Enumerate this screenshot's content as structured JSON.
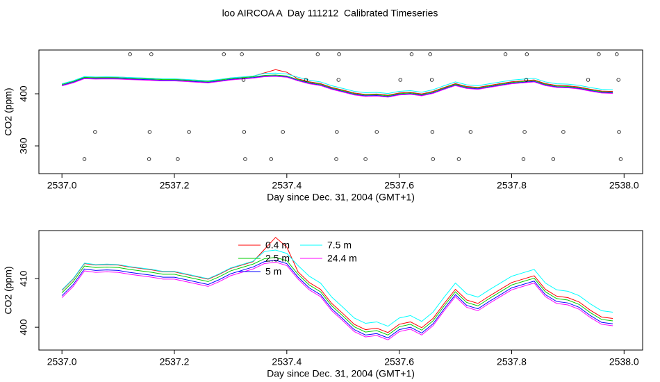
{
  "title": "loo AIRCOA A  Day 111212  Calibrated Timeseries",
  "chart_data": [
    {
      "type": "line",
      "xlabel": "Day since Dec. 31, 2004 (GMT+1)",
      "ylabel": "CO2 (ppm)",
      "xlim": [
        2536.959,
        2538.033
      ],
      "xticks": [
        {
          "value": 2537,
          "label": "2537.0"
        },
        2537.2,
        2537.4,
        2537.6,
        2537.8,
        {
          "value": 2538,
          "label": "2538.0"
        }
      ],
      "ylim": [
        338.7,
        433.6
      ],
      "yticks": [
        360,
        400
      ],
      "x": [
        2537,
        2537.02,
        2537.04,
        2537.06,
        2537.08,
        2537.1,
        2537.12,
        2537.14,
        2537.16,
        2537.18,
        2537.2,
        2537.22,
        2537.24,
        2537.26,
        2537.28,
        2537.3,
        2537.32,
        2537.34,
        2537.36,
        2537.38,
        2537.4,
        2537.42,
        2537.44,
        2537.46,
        2537.48,
        2537.5,
        2537.52,
        2537.54,
        2537.56,
        2537.58,
        2537.6,
        2537.62,
        2537.64,
        2537.66,
        2537.68,
        2537.7,
        2537.72,
        2537.74,
        2537.76,
        2537.78,
        2537.8,
        2537.82,
        2537.84,
        2537.86,
        2537.88,
        2537.9,
        2537.92,
        2537.94,
        2537.96,
        2537.98
      ],
      "series": [
        {
          "color": "#ff0000",
          "values": [
            407.6,
            409.9,
            413.1,
            412.8,
            412.9,
            412.8,
            412.4,
            412.1,
            411.8,
            411.4,
            411.4,
            410.9,
            410.4,
            409.9,
            410.9,
            412.1,
            412.8,
            413.5,
            416.0,
            418.5,
            416.5,
            411.4,
            409.2,
            407.8,
            404.9,
            402.8,
            400.6,
            399.5,
            399.8,
            398.9,
            400.6,
            401.1,
            399.9,
            401.8,
            404.9,
            407.8,
            405.6,
            404.9,
            406.4,
            407.8,
            409.2,
            409.9,
            410.6,
            407.8,
            406.4,
            406.1,
            405.2,
            403.5,
            402.1,
            401.8
          ]
        },
        {
          "color": "#00cd00",
          "values": [
            407.1,
            409.4,
            412.6,
            412.3,
            412.4,
            412.3,
            411.9,
            411.6,
            411.3,
            410.9,
            410.9,
            410.4,
            409.9,
            409.4,
            410.4,
            411.6,
            412.3,
            413.0,
            414.1,
            414.4,
            413.7,
            410.9,
            408.7,
            407.3,
            404.4,
            402.3,
            400.1,
            399.0,
            399.3,
            398.4,
            400.1,
            400.6,
            399.4,
            401.3,
            404.4,
            407.3,
            405.1,
            404.4,
            405.9,
            407.3,
            408.7,
            409.4,
            410.1,
            407.3,
            405.9,
            405.6,
            404.7,
            403.0,
            401.6,
            401.3
          ]
        },
        {
          "color": "#0000ff",
          "values": [
            406.5,
            408.8,
            412.0,
            411.7,
            411.8,
            411.7,
            411.3,
            411.0,
            410.7,
            410.3,
            410.3,
            409.8,
            409.3,
            408.8,
            409.8,
            411.0,
            411.7,
            412.4,
            413.5,
            413.8,
            413.1,
            410.3,
            408.1,
            406.7,
            403.8,
            401.7,
            399.5,
            398.4,
            398.7,
            397.8,
            399.5,
            400.0,
            398.8,
            400.7,
            403.8,
            406.7,
            404.5,
            403.8,
            405.3,
            406.7,
            408.1,
            408.8,
            409.5,
            406.7,
            405.3,
            405.0,
            404.1,
            402.4,
            401.0,
            400.7
          ]
        },
        {
          "color": "#00ffff",
          "values": [
            407.7,
            410.0,
            413.2,
            412.9,
            413.0,
            412.9,
            412.5,
            412.2,
            411.9,
            411.5,
            411.5,
            411.0,
            410.5,
            410.0,
            411.0,
            412.2,
            412.9,
            413.6,
            415.6,
            415.9,
            415.2,
            412.7,
            410.5,
            409.1,
            406.2,
            404.1,
            401.9,
            400.8,
            401.1,
            400.2,
            401.9,
            402.4,
            401.2,
            403.1,
            406.2,
            409.1,
            406.9,
            406.2,
            407.7,
            409.1,
            410.5,
            411.2,
            411.9,
            409.1,
            407.7,
            407.4,
            406.5,
            404.8,
            403.4,
            403.1
          ]
        },
        {
          "color": "#ff00ff",
          "values": [
            406.1,
            408.4,
            411.6,
            411.3,
            411.4,
            411.3,
            410.9,
            410.6,
            410.3,
            409.9,
            409.9,
            409.4,
            408.9,
            408.4,
            409.4,
            410.6,
            411.3,
            412.0,
            413.1,
            413.4,
            412.7,
            409.9,
            407.7,
            406.3,
            403.4,
            401.3,
            399.1,
            398.0,
            398.3,
            397.4,
            399.1,
            399.6,
            398.4,
            400.3,
            403.4,
            406.3,
            404.1,
            403.4,
            404.9,
            406.3,
            407.7,
            408.4,
            409.1,
            406.3,
            404.9,
            404.6,
            403.7,
            402.0,
            400.6,
            400.3
          ]
        }
      ],
      "points": {
        "color": "#000000",
        "x": [
          2537.121,
          2537.159,
          2537.288,
          2537.32,
          2537.455,
          2537.493,
          2537.622,
          2537.655,
          2537.789,
          2537.827,
          2537.955,
          2537.987,
          2537.323,
          2537.434,
          2537.492,
          2537.602,
          2537.658,
          2537.826,
          2537.936,
          2537.99,
          2537.059,
          2537.156,
          2537.226,
          2537.324,
          2537.393,
          2537.489,
          2537.56,
          2537.659,
          2537.727,
          2537.823,
          2537.892,
          2537.991,
          2537.04,
          2537.155,
          2537.206,
          2537.326,
          2537.372,
          2537.488,
          2537.54,
          2537.66,
          2537.706,
          2537.821,
          2537.874,
          2537.994
        ],
        "values": [
          430.4,
          430.4,
          430.4,
          430.4,
          430.4,
          430.4,
          430.4,
          430.4,
          430.4,
          430.4,
          430.4,
          430.4,
          410.7,
          410.7,
          410.7,
          410.7,
          410.7,
          410.7,
          410.7,
          410.7,
          370.7,
          370.7,
          370.7,
          370.7,
          370.7,
          370.7,
          370.7,
          370.7,
          370.7,
          370.7,
          370.7,
          370.7,
          349.9,
          349.9,
          349.9,
          349.9,
          349.9,
          349.9,
          349.9,
          349.9,
          349.9,
          349.9,
          349.9,
          349.9
        ]
      }
    },
    {
      "type": "line",
      "xlabel": "Day since Dec. 31, 2004 (GMT+1)",
      "ylabel": "CO2 (ppm)",
      "xlim": [
        2536.959,
        2538.033
      ],
      "xticks": [
        {
          "value": 2537,
          "label": "2537.0"
        },
        2537.2,
        2537.4,
        2537.6,
        2537.8,
        {
          "value": 2538,
          "label": "2538.0"
        }
      ],
      "ylim": [
        395.3,
        419.9
      ],
      "yticks": [
        400,
        410
      ],
      "legend": "top",
      "x": [
        2537,
        2537.02,
        2537.04,
        2537.06,
        2537.08,
        2537.1,
        2537.12,
        2537.14,
        2537.16,
        2537.18,
        2537.2,
        2537.22,
        2537.24,
        2537.26,
        2537.28,
        2537.3,
        2537.32,
        2537.34,
        2537.36,
        2537.38,
        2537.4,
        2537.42,
        2537.44,
        2537.46,
        2537.48,
        2537.5,
        2537.52,
        2537.54,
        2537.56,
        2537.58,
        2537.6,
        2537.62,
        2537.64,
        2537.66,
        2537.68,
        2537.7,
        2537.72,
        2537.74,
        2537.76,
        2537.78,
        2537.8,
        2537.82,
        2537.84,
        2537.86,
        2537.88,
        2537.9,
        2537.92,
        2537.94,
        2537.96,
        2537.98
      ],
      "series": [
        {
          "name": "0.4 m",
          "color": "#ff0000",
          "values": [
            407.6,
            409.9,
            413.1,
            412.8,
            412.9,
            412.8,
            412.4,
            412.1,
            411.8,
            411.4,
            411.4,
            410.9,
            410.4,
            409.9,
            410.9,
            412.1,
            412.8,
            413.5,
            416.0,
            418.5,
            416.5,
            411.4,
            409.2,
            407.8,
            404.9,
            402.8,
            400.6,
            399.5,
            399.8,
            398.9,
            400.6,
            401.1,
            399.9,
            401.8,
            404.9,
            407.8,
            405.6,
            404.9,
            406.4,
            407.8,
            409.2,
            409.9,
            410.6,
            407.8,
            406.4,
            406.1,
            405.2,
            403.5,
            402.1,
            401.8
          ]
        },
        {
          "name": "2.5 m",
          "color": "#00cd00",
          "values": [
            407.1,
            409.4,
            412.6,
            412.3,
            412.4,
            412.3,
            411.9,
            411.6,
            411.3,
            410.9,
            410.9,
            410.4,
            409.9,
            409.4,
            410.4,
            411.6,
            412.3,
            413.0,
            414.1,
            414.4,
            413.7,
            410.9,
            408.7,
            407.3,
            404.4,
            402.3,
            400.1,
            399.0,
            399.3,
            398.4,
            400.1,
            400.6,
            399.4,
            401.3,
            404.4,
            407.3,
            405.1,
            404.4,
            405.9,
            407.3,
            408.7,
            409.4,
            410.1,
            407.3,
            405.9,
            405.6,
            404.7,
            403.0,
            401.6,
            401.3
          ]
        },
        {
          "name": "5 m",
          "color": "#0000ff",
          "values": [
            406.5,
            408.8,
            412.0,
            411.7,
            411.8,
            411.7,
            411.3,
            411.0,
            410.7,
            410.3,
            410.3,
            409.8,
            409.3,
            408.8,
            409.8,
            411.0,
            411.7,
            412.4,
            413.5,
            413.8,
            413.1,
            410.3,
            408.1,
            406.7,
            403.8,
            401.7,
            399.5,
            398.4,
            398.7,
            397.8,
            399.5,
            400.0,
            398.8,
            400.7,
            403.8,
            406.7,
            404.5,
            403.8,
            405.3,
            406.7,
            408.1,
            408.8,
            409.5,
            406.7,
            405.3,
            405.0,
            404.1,
            402.4,
            401.0,
            400.7
          ]
        },
        {
          "name": "7.5 m",
          "color": "#00ffff",
          "values": [
            407.7,
            410.0,
            413.2,
            412.9,
            413.0,
            412.9,
            412.5,
            412.2,
            411.9,
            411.5,
            411.5,
            411.0,
            410.5,
            410.0,
            411.0,
            412.2,
            412.9,
            413.6,
            415.6,
            415.9,
            415.2,
            412.7,
            410.5,
            409.1,
            406.2,
            404.1,
            401.9,
            400.8,
            401.1,
            400.2,
            401.9,
            402.4,
            401.2,
            403.1,
            406.2,
            409.1,
            406.9,
            406.2,
            407.7,
            409.1,
            410.5,
            411.2,
            411.9,
            409.1,
            407.7,
            407.4,
            406.5,
            404.8,
            403.4,
            403.1
          ]
        },
        {
          "name": "24.4 m",
          "color": "#ff00ff",
          "values": [
            406.1,
            408.4,
            411.6,
            411.3,
            411.4,
            411.3,
            410.9,
            410.6,
            410.3,
            409.9,
            409.9,
            409.4,
            408.9,
            408.4,
            409.4,
            410.6,
            411.3,
            412.0,
            413.1,
            413.4,
            412.7,
            409.9,
            407.7,
            406.3,
            403.4,
            401.3,
            399.1,
            398.0,
            398.3,
            397.4,
            399.1,
            399.6,
            398.4,
            400.3,
            403.4,
            406.3,
            404.1,
            403.4,
            404.9,
            406.3,
            407.7,
            408.4,
            409.1,
            406.3,
            404.9,
            404.6,
            403.7,
            402.0,
            400.6,
            400.3
          ]
        }
      ]
    }
  ]
}
